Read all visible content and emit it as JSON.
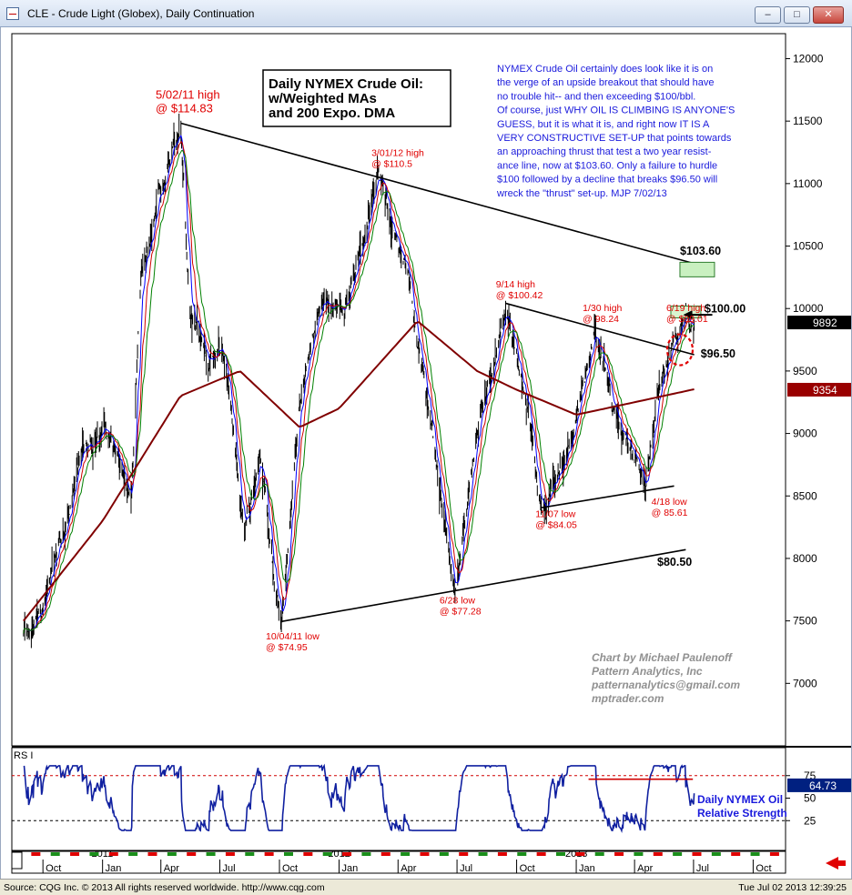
{
  "window": {
    "title": "CLE - Crude Light (Globex), Daily Continuation",
    "buttons": [
      "–",
      "□",
      "✕"
    ]
  },
  "chart_data": {
    "type": "line",
    "title": "Daily NYMEX Crude Oil:\nw/Weighted MAs\nand 200 Expo. DMA",
    "y_ticks": [
      "12000",
      "11500",
      "11000",
      "10500",
      "10000",
      "9500",
      "9000",
      "8500",
      "8000",
      "7500",
      "7000"
    ],
    "ylim": [
      6500,
      12200
    ],
    "time_labels": {
      "months": [
        "Oct",
        "Jan",
        "Apr",
        "Jul",
        "Oct",
        "Jan",
        "Apr",
        "Jul",
        "Oct",
        "Jan",
        "Apr",
        "Jul",
        "Oct"
      ],
      "years": [
        "2011",
        "2012",
        "2013"
      ]
    },
    "price_anchors": [
      [
        "2010-09-01",
        7400
      ],
      [
        "2010-10-01",
        7600
      ],
      [
        "2010-11-01",
        8200
      ],
      [
        "2010-12-01",
        8800
      ],
      [
        "2011-01-01",
        9000
      ],
      [
        "2011-02-15",
        8500
      ],
      [
        "2011-03-01",
        10200
      ],
      [
        "2011-04-01",
        10900
      ],
      [
        "2011-05-02",
        11483
      ],
      [
        "2011-05-15",
        10000
      ],
      [
        "2011-06-15",
        9600
      ],
      [
        "2011-07-05",
        9700
      ],
      [
        "2011-08-08",
        8200
      ],
      [
        "2011-09-01",
        8800
      ],
      [
        "2011-10-04",
        7495
      ],
      [
        "2011-11-01",
        9300
      ],
      [
        "2011-12-01",
        10000
      ],
      [
        "2012-01-15",
        10100
      ],
      [
        "2012-03-01",
        11050
      ],
      [
        "2012-04-15",
        10300
      ],
      [
        "2012-05-15",
        9300
      ],
      [
        "2012-06-28",
        7728
      ],
      [
        "2012-08-01",
        9000
      ],
      [
        "2012-09-14",
        10042
      ],
      [
        "2012-10-15",
        9300
      ],
      [
        "2012-11-07",
        8405
      ],
      [
        "2012-12-15",
        8800
      ],
      [
        "2013-01-30",
        9824
      ],
      [
        "2013-03-01",
        9200
      ],
      [
        "2013-04-18",
        8561
      ],
      [
        "2013-05-15",
        9500
      ],
      [
        "2013-06-19",
        9901
      ],
      [
        "2013-07-02",
        9892
      ]
    ],
    "ema200_anchors": [
      [
        "2010-09-01",
        7500
      ],
      [
        "2011-01-01",
        8300
      ],
      [
        "2011-05-01",
        9300
      ],
      [
        "2011-08-01",
        9500
      ],
      [
        "2011-11-01",
        9050
      ],
      [
        "2012-01-01",
        9200
      ],
      [
        "2012-05-01",
        9900
      ],
      [
        "2012-08-01",
        9500
      ],
      [
        "2012-10-01",
        9350
      ],
      [
        "2013-01-01",
        9150
      ],
      [
        "2013-04-01",
        9250
      ],
      [
        "2013-07-02",
        9354
      ]
    ],
    "ma_colors": {
      "fast": "#0000ff",
      "mid": "#d00000",
      "slow": "#008000",
      "ema200": "#800000"
    },
    "trendlines": [
      {
        "from": [
          "2011-05-02",
          11483
        ],
        "to": [
          "2013-07-02",
          10360
        ]
      },
      {
        "from": [
          "2012-09-14",
          10042
        ],
        "to": [
          "2013-07-02",
          9630
        ]
      },
      {
        "from": [
          "2011-10-04",
          7495
        ],
        "to": [
          "2013-06-19",
          8070
        ]
      },
      {
        "from": [
          "2012-11-07",
          8405
        ],
        "to": [
          "2013-06-01",
          8580
        ]
      }
    ],
    "annotations": [
      {
        "label": "5/02/11 high\n@ $114.83",
        "at": [
          "2011-03-24",
          11680
        ],
        "size": "large"
      },
      {
        "label": "3/01/12 high\n@ $110.5",
        "at": [
          "2012-02-20",
          11220
        ],
        "size": "small"
      },
      {
        "label": "9/14 high\n@ $100.42",
        "at": [
          "2012-08-30",
          10170
        ],
        "size": "small"
      },
      {
        "label": "1/30 high\n@ 98.24",
        "at": [
          "2013-01-11",
          9980
        ],
        "size": "small"
      },
      {
        "label": "6/19 high\n@ $99.01",
        "at": [
          "2013-05-20",
          9980
        ],
        "size": "small"
      },
      {
        "label": "11/07 low\n@ $84.05",
        "at": [
          "2012-10-30",
          8330
        ],
        "size": "small"
      },
      {
        "label": "4/18 low\n@ 85.61",
        "at": [
          "2013-04-27",
          8430
        ],
        "size": "small"
      },
      {
        "label": "6/28 low\n@ $77.28",
        "at": [
          "2012-06-04",
          7640
        ],
        "size": "small"
      },
      {
        "label": "10/04/11 low\n@ $74.95",
        "at": [
          "2011-09-10",
          7350
        ],
        "size": "small"
      }
    ],
    "level_labels": [
      {
        "label": "$103.60",
        "at": [
          "2013-06-10",
          10430
        ]
      },
      {
        "label": "$100.00",
        "at": [
          "2013-07-18",
          9970
        ]
      },
      {
        "label": "$96.50",
        "at": [
          "2013-07-12",
          9610
        ]
      },
      {
        "label": "$80.50",
        "at": [
          "2013-05-06",
          7940
        ]
      }
    ],
    "commentary": "NYMEX Crude Oil certainly does look like it is on\nthe verge of an upside breakout that should have\nno trouble hit-- and then exceeding $100/bbl.\nOf course, just WHY OIL IS CLIMBING IS ANYONE'S\nGUESS, but it is what it is, and right now IT IS A\nVERY CONSTRUCTIVE SET-UP that points towards\nan approaching thrust that test a two year resist-\nance line, now at $103.60.  Only a failure to hurdle\n$100 followed by a decline that breaks $96.50 will\nwreck the \"thrust\" set-up.  MJP  7/02/13",
    "credit": [
      "Chart by Michael Paulenoff",
      "Pattern Analytics, Inc",
      "patternanalytics@gmail.com",
      "mptrader.com"
    ],
    "last_price": "9892",
    "ema_value": "9354",
    "rsi": {
      "label": "RS I",
      "ticks": [
        "75",
        "50",
        "25"
      ],
      "value": "64.73",
      "caption": "Daily NYMEX Oil\nRelative Strength",
      "overbought": 75,
      "oversold": 25
    }
  },
  "footer": {
    "source": "Source: CQG Inc. © 2013 All rights reserved worldwide. http://www.cqg.com",
    "timestamp": "Tue Jul 02 2013 12:39:25"
  }
}
